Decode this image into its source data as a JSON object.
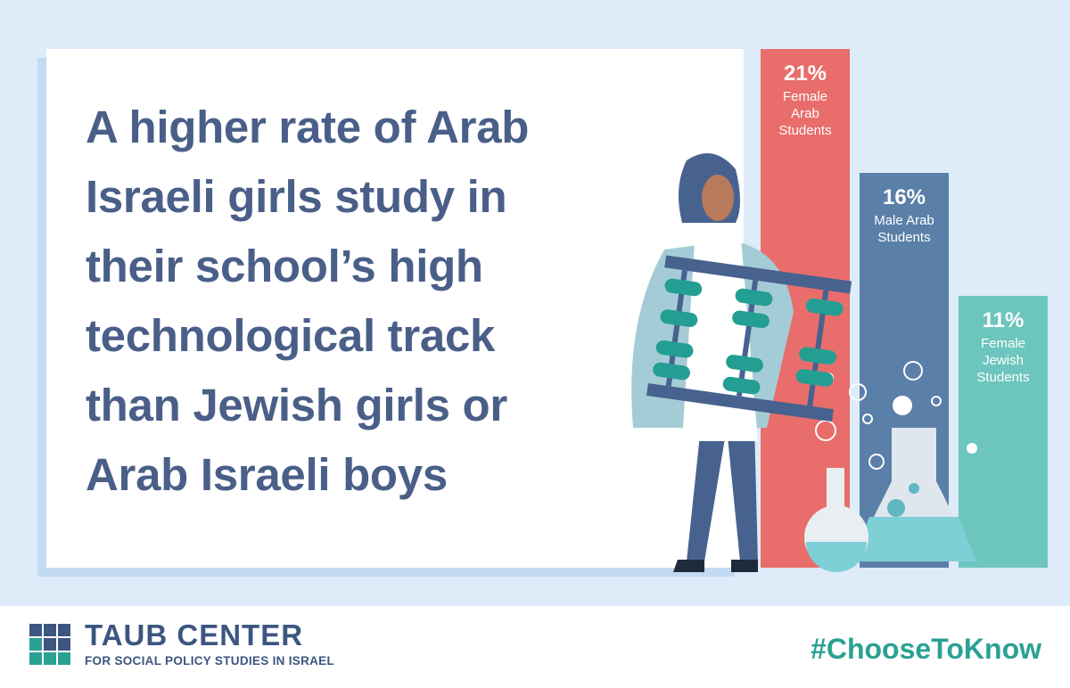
{
  "headline": {
    "lines": [
      "A higher rate of Arab",
      "Israeli girls study in",
      "their school’s high",
      "technological track",
      "than Jewish girls or",
      "Arab Israeli boys"
    ]
  },
  "chart_data": {
    "type": "bar",
    "categories": [
      "Female Arab Students",
      "Male Arab Students",
      "Female Jewish Students"
    ],
    "values": [
      21,
      16,
      11
    ],
    "value_labels": [
      "21%",
      "16%",
      "11%"
    ],
    "colors": [
      "#e86d6b",
      "#5a7fa8",
      "#6dc6bd"
    ]
  },
  "footer": {
    "brand": "TAUB CENTER",
    "tagline": "FOR SOCIAL POLICY STUDIES IN ISRAEL",
    "hashtag": "#ChooseToKnow"
  }
}
